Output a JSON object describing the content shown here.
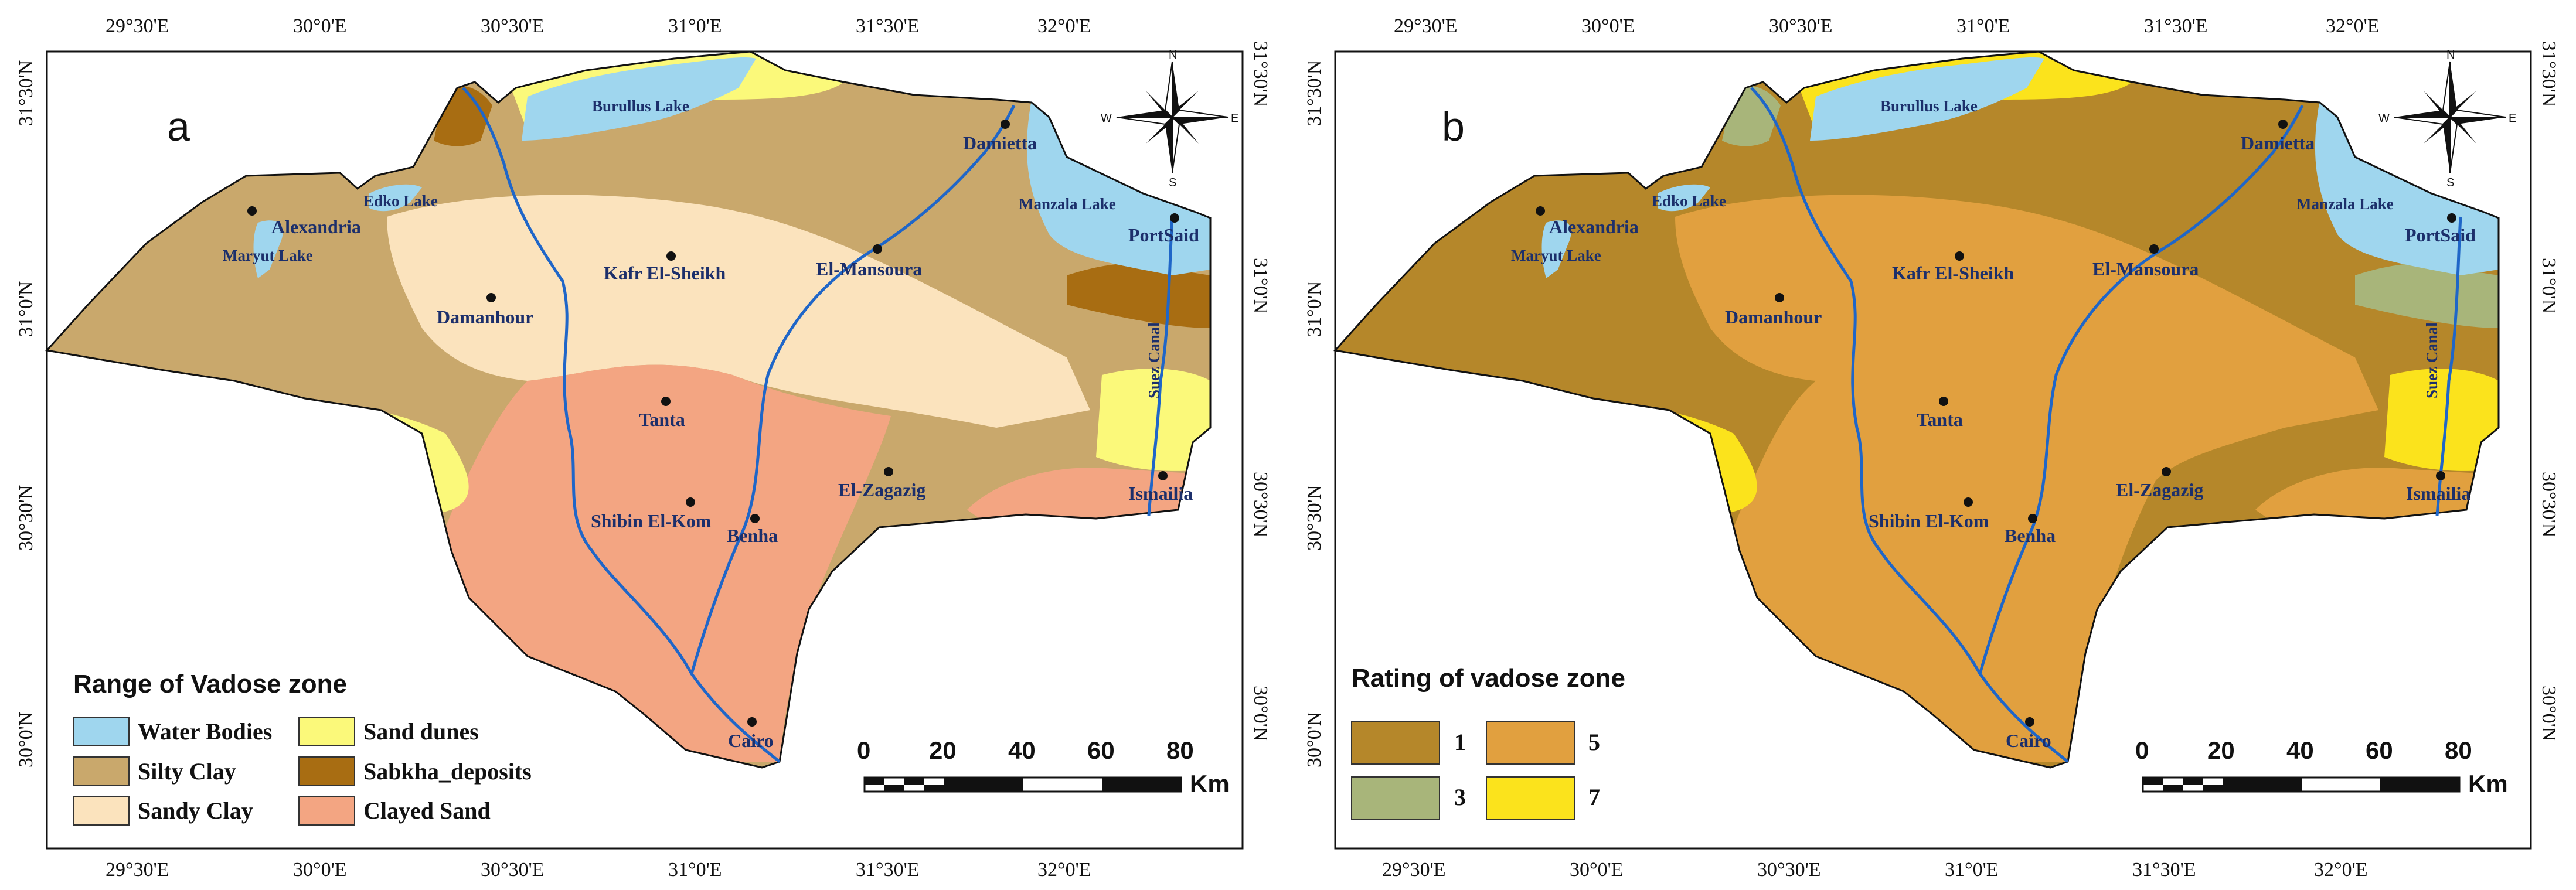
{
  "figure": {
    "panels": [
      {
        "letter": "a",
        "legend_title": "Range of Vadose zone",
        "legend_items": [
          {
            "label": "Water Bodies",
            "color": "#9fd6ee"
          },
          {
            "label": "Sand dunes",
            "color": "#fbf97a"
          },
          {
            "label": "Silty Clay",
            "color": "#c9a86c"
          },
          {
            "label": "Sabkha_deposits",
            "color": "#a86d12"
          },
          {
            "label": "Sandy Clay",
            "color": "#fbe3bd"
          },
          {
            "label": "Clayed Sand",
            "color": "#f3a582"
          }
        ]
      },
      {
        "letter": "b",
        "legend_title": "Rating of vadose zone",
        "legend_items": [
          {
            "label": "1",
            "color": "#b5872a"
          },
          {
            "label": "5",
            "color": "#e1a03f"
          },
          {
            "label": "3",
            "color": "#a8b57a"
          },
          {
            "label": "7",
            "color": "#fbe31c"
          }
        ]
      }
    ],
    "lon_ticks": [
      "29°30'E",
      "30°0'E",
      "30°30'E",
      "31°0'E",
      "31°30'E",
      "32°0'E"
    ],
    "lat_ticks": [
      "31°30'N",
      "31°0'N",
      "30°30'N",
      "30°0'N"
    ],
    "cities": [
      "Alexandria",
      "Damanhour",
      "Kafr El-Sheikh",
      "El-Mansoura",
      "Damietta",
      "PortSaid",
      "Tanta",
      "Shibin El-Kom",
      "Benha",
      "El-Zagazig",
      "Ismailia",
      "Cairo"
    ],
    "lakes": [
      "Burullus Lake",
      "Edko Lake",
      "Maryut Lake",
      "Manzala Lake"
    ],
    "canal": "Suez Canal",
    "scale": {
      "labels": [
        "0",
        "20",
        "40",
        "60",
        "80"
      ],
      "unit": "Km"
    },
    "compass": {
      "n": "N",
      "s": "S",
      "e": "E",
      "w": "W"
    },
    "colors": {
      "river": "#1f66c8",
      "outline": "#111111"
    }
  }
}
